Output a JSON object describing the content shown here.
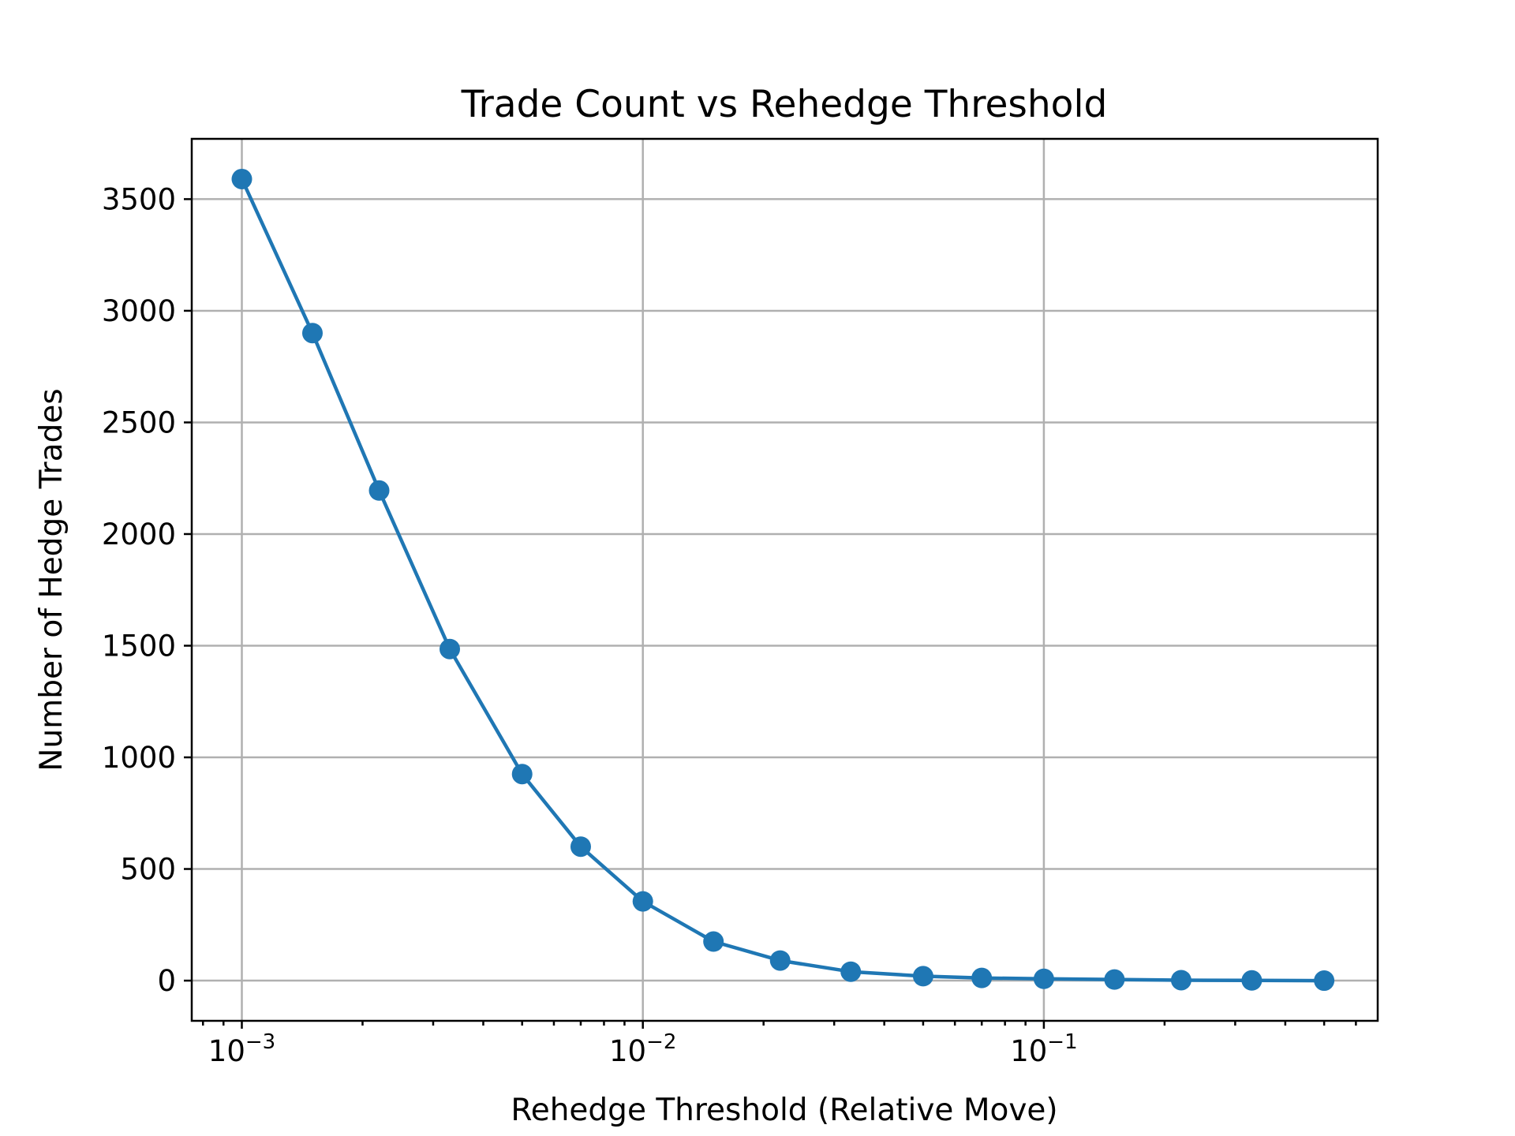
{
  "chart_data": {
    "type": "line",
    "title": "Trade Count vs Rehedge Threshold",
    "xlabel": "Rehedge Threshold (Relative Move)",
    "ylabel": "Number of Hedge Trades",
    "xscale": "log",
    "xlim": [
      0.00075,
      0.68
    ],
    "ylim": [
      -180,
      3770
    ],
    "grid": true,
    "x_major_ticks": [
      {
        "value": 0.001,
        "label": "10",
        "exp": "−3"
      },
      {
        "value": 0.01,
        "label": "10",
        "exp": "−2"
      },
      {
        "value": 0.1,
        "label": "10",
        "exp": "−1"
      }
    ],
    "y_ticks": [
      0,
      500,
      1000,
      1500,
      2000,
      2500,
      3000,
      3500
    ],
    "colors": {
      "series": "#1f77b4"
    },
    "series": [
      {
        "x": [
          0.001,
          0.0015,
          0.0022,
          0.0033,
          0.005,
          0.007,
          0.01,
          0.015,
          0.022,
          0.033,
          0.05,
          0.07,
          0.1,
          0.15,
          0.22,
          0.33,
          0.5
        ],
        "values": [
          3590,
          2900,
          2195,
          1485,
          925,
          600,
          355,
          175,
          90,
          40,
          20,
          12,
          8,
          5,
          2,
          1,
          0
        ],
        "marker": "circle"
      }
    ]
  }
}
